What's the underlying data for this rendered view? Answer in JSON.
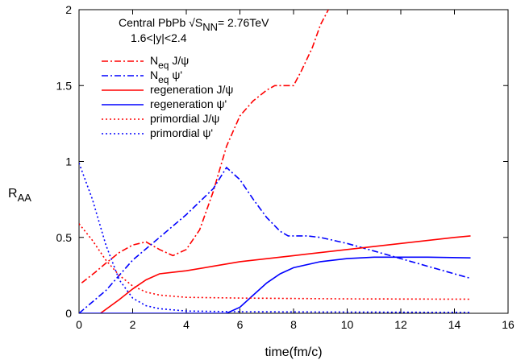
{
  "chart_data": {
    "type": "line",
    "title": "",
    "xlabel": "time(fm/c)",
    "ylabel": "R",
    "ylabel_sub": "AA",
    "xlim": [
      0,
      16
    ],
    "ylim": [
      0,
      2
    ],
    "xticks": [
      "0",
      "2",
      "4",
      "6",
      "8",
      "10",
      "12",
      "14",
      "16"
    ],
    "yticks": [
      "0",
      "0.5",
      "1",
      "1.5",
      "2"
    ],
    "annotation": {
      "line1": "Central PbPb √S",
      "line1_sub": "NN",
      "line1_end": "= 2.76TeV",
      "line2": "1.6<|y|<2.4"
    },
    "legend": [
      {
        "label": "N",
        "sub": "eq",
        "rest": " J/ψ",
        "color": "#ff0000",
        "style": "dashdot"
      },
      {
        "label": "N",
        "sub": "eq",
        "rest": " ψ'",
        "color": "#0000ff",
        "style": "dashdot"
      },
      {
        "label": "regeneration J/ψ",
        "sub": "",
        "rest": "",
        "color": "#ff0000",
        "style": "solid"
      },
      {
        "label": "regeneration ψ'",
        "sub": "",
        "rest": "",
        "color": "#0000ff",
        "style": "solid"
      },
      {
        "label": "primordial J/ψ",
        "sub": "",
        "rest": "",
        "color": "#ff0000",
        "style": "dotted"
      },
      {
        "label": "primordial ψ'",
        "sub": "",
        "rest": "",
        "color": "#0000ff",
        "style": "dotted"
      }
    ],
    "series": [
      {
        "name": "Neq J/psi",
        "color": "#ff0000",
        "style": "dashdot",
        "points": [
          [
            0.1,
            0.2
          ],
          [
            0.6,
            0.27
          ],
          [
            1.0,
            0.33
          ],
          [
            1.5,
            0.4
          ],
          [
            2.0,
            0.45
          ],
          [
            2.5,
            0.47
          ],
          [
            3.0,
            0.42
          ],
          [
            3.5,
            0.38
          ],
          [
            4.0,
            0.42
          ],
          [
            4.5,
            0.55
          ],
          [
            5.0,
            0.8
          ],
          [
            5.5,
            1.1
          ],
          [
            6.0,
            1.3
          ],
          [
            6.5,
            1.4
          ],
          [
            7.0,
            1.47
          ],
          [
            7.3,
            1.5
          ],
          [
            7.7,
            1.5
          ],
          [
            8.0,
            1.5
          ],
          [
            8.3,
            1.6
          ],
          [
            8.7,
            1.75
          ],
          [
            9.0,
            1.9
          ],
          [
            9.3,
            2.0
          ]
        ]
      },
      {
        "name": "Neq psi'",
        "color": "#0000ff",
        "style": "dashdot",
        "points": [
          [
            0.0,
            0.0
          ],
          [
            1.0,
            0.15
          ],
          [
            2.0,
            0.35
          ],
          [
            3.0,
            0.5
          ],
          [
            4.0,
            0.65
          ],
          [
            5.0,
            0.82
          ],
          [
            5.5,
            0.96
          ],
          [
            6.0,
            0.88
          ],
          [
            6.5,
            0.75
          ],
          [
            7.0,
            0.63
          ],
          [
            7.5,
            0.54
          ],
          [
            7.8,
            0.51
          ],
          [
            8.5,
            0.51
          ],
          [
            9.0,
            0.5
          ],
          [
            10.0,
            0.46
          ],
          [
            11.0,
            0.41
          ],
          [
            12.0,
            0.36
          ],
          [
            13.0,
            0.31
          ],
          [
            14.0,
            0.26
          ],
          [
            14.6,
            0.23
          ]
        ]
      },
      {
        "name": "regeneration J/psi",
        "color": "#ff0000",
        "style": "solid",
        "points": [
          [
            0.8,
            0.0
          ],
          [
            1.5,
            0.09
          ],
          [
            2.0,
            0.16
          ],
          [
            2.5,
            0.22
          ],
          [
            3.0,
            0.26
          ],
          [
            3.5,
            0.27
          ],
          [
            4.0,
            0.28
          ],
          [
            5.0,
            0.31
          ],
          [
            6.0,
            0.34
          ],
          [
            8.0,
            0.38
          ],
          [
            10.0,
            0.42
          ],
          [
            12.0,
            0.46
          ],
          [
            14.0,
            0.5
          ],
          [
            14.6,
            0.51
          ]
        ]
      },
      {
        "name": "regeneration psi'",
        "color": "#0000ff",
        "style": "solid",
        "points": [
          [
            0.0,
            0.0
          ],
          [
            5.5,
            0.0
          ],
          [
            6.0,
            0.04
          ],
          [
            6.5,
            0.12
          ],
          [
            7.0,
            0.2
          ],
          [
            7.5,
            0.26
          ],
          [
            8.0,
            0.3
          ],
          [
            9.0,
            0.34
          ],
          [
            10.0,
            0.36
          ],
          [
            11.0,
            0.37
          ],
          [
            12.0,
            0.37
          ],
          [
            13.0,
            0.37
          ],
          [
            14.6,
            0.365
          ]
        ]
      },
      {
        "name": "primordial J/psi",
        "color": "#ff0000",
        "style": "dotted",
        "points": [
          [
            0.0,
            0.59
          ],
          [
            0.5,
            0.48
          ],
          [
            1.0,
            0.35
          ],
          [
            1.5,
            0.25
          ],
          [
            2.0,
            0.18
          ],
          [
            2.5,
            0.14
          ],
          [
            3.0,
            0.12
          ],
          [
            4.0,
            0.105
          ],
          [
            6.0,
            0.1
          ],
          [
            10.0,
            0.095
          ],
          [
            14.6,
            0.093
          ]
        ]
      },
      {
        "name": "primordial psi'",
        "color": "#0000ff",
        "style": "dotted",
        "points": [
          [
            0.0,
            0.99
          ],
          [
            0.5,
            0.75
          ],
          [
            1.0,
            0.45
          ],
          [
            1.5,
            0.22
          ],
          [
            2.0,
            0.1
          ],
          [
            2.5,
            0.05
          ],
          [
            3.0,
            0.03
          ],
          [
            4.0,
            0.015
          ],
          [
            6.0,
            0.01
          ],
          [
            10.0,
            0.008
          ],
          [
            14.6,
            0.006
          ]
        ]
      }
    ]
  }
}
